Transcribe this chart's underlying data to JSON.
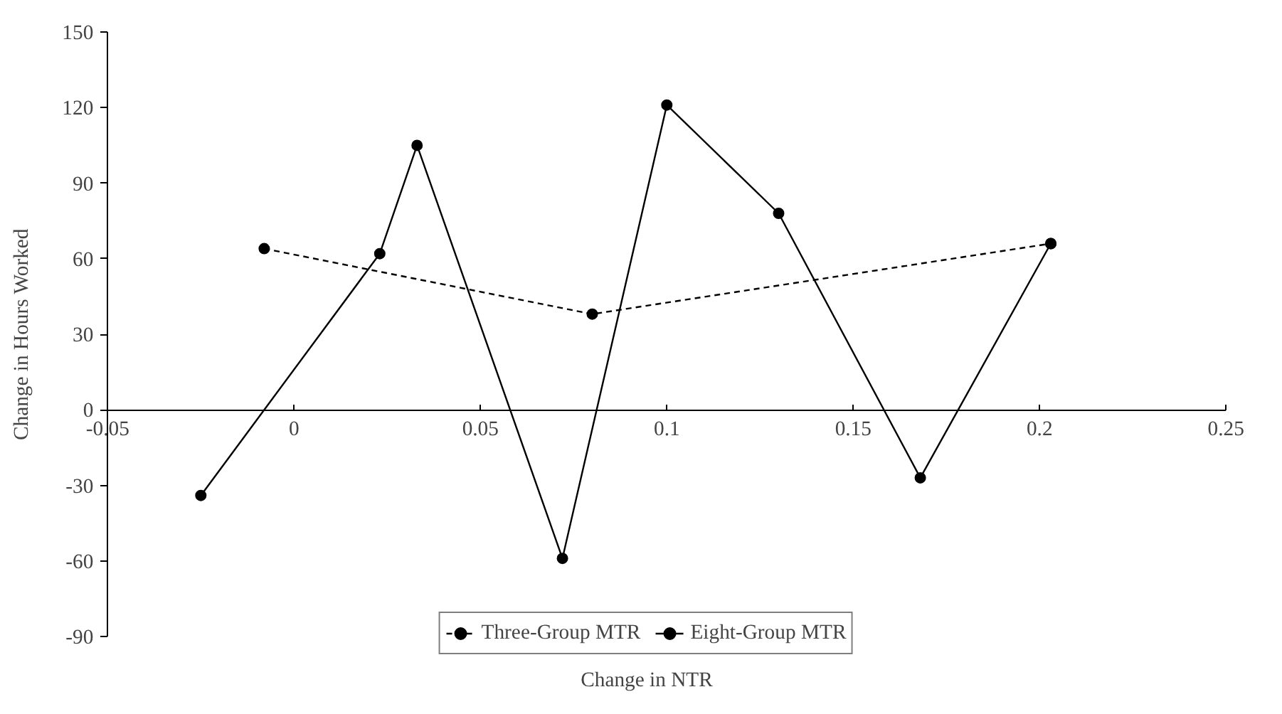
{
  "chart_data": {
    "type": "line",
    "xlabel": "Change in NTR",
    "ylabel": "Change in Hours Worked",
    "xlim": [
      -0.05,
      0.25
    ],
    "xticks": [
      -0.05,
      0,
      0.05,
      0.1,
      0.15,
      0.2,
      0.25
    ],
    "ylim": [
      -90,
      150
    ],
    "yticks": [
      -90,
      -60,
      -30,
      0,
      30,
      60,
      90,
      120,
      150
    ],
    "grid": false,
    "legend": "bottom",
    "marker": "circle",
    "series": [
      {
        "name": "Three-Group MTR",
        "color": "#000000",
        "line_style": "dashed",
        "x": [
          -0.008,
          0.08,
          0.203
        ],
        "values": [
          64,
          38,
          66
        ]
      },
      {
        "name": "Eight-Group MTR",
        "color": "#000000",
        "line_style": "solid",
        "x": [
          -0.025,
          0.023,
          0.033,
          0.072,
          0.1,
          0.13,
          0.168,
          0.203
        ],
        "values": [
          -34,
          62,
          105,
          -59,
          121,
          78,
          -27,
          66
        ]
      }
    ]
  }
}
